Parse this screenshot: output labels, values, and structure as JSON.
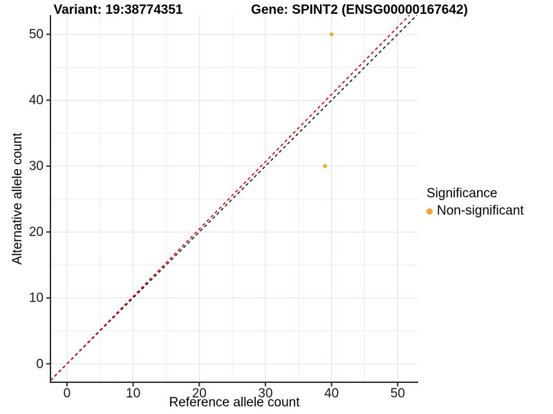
{
  "titles": {
    "variant": "Variant: 19:38774351",
    "gene": "Gene: SPINT2 (ENSG00000167642)"
  },
  "axes": {
    "x_label": "Reference allele count",
    "y_label": "Alternative allele count"
  },
  "legend": {
    "title": "Significance",
    "items": [
      {
        "label": "Non-significant",
        "color": "#FBA226",
        "marker": "circle-icon"
      }
    ]
  },
  "chart_data": {
    "type": "scatter",
    "title_left": "Variant: 19:38774351",
    "title_right": "Gene: SPINT2 (ENSG00000167642)",
    "xlabel": "Reference allele count",
    "ylabel": "Alternative allele count",
    "xlim": [
      -2.5,
      53.1
    ],
    "ylim": [
      -2.8,
      52.9
    ],
    "x_ticks": [
      0,
      10,
      20,
      30,
      40,
      50
    ],
    "y_ticks": [
      0,
      10,
      20,
      30,
      40,
      50
    ],
    "x_minor": [
      5,
      15,
      25,
      35,
      45
    ],
    "y_minor": [
      5,
      15,
      25,
      35,
      45
    ],
    "grid": true,
    "legend_position": "right",
    "series": [
      {
        "name": "Non-significant",
        "color": "#FBA226"
      }
    ],
    "points": [
      {
        "x": 40,
        "y": 50,
        "series": "Non-significant"
      },
      {
        "x": 39,
        "y": 30,
        "series": "Non-significant"
      }
    ],
    "lines": [
      {
        "name": "identity-line",
        "slope": 1.0,
        "intercept": 0,
        "color": "#1F1F1F",
        "style": "dashed"
      },
      {
        "name": "fit-line",
        "slope": 1.022,
        "intercept": 0,
        "color": "#E30202",
        "style": "dashed"
      }
    ]
  },
  "style": {
    "background": "#FFFFFF",
    "grid_major": "#E2E2E2",
    "grid_minor": "#EDEDED",
    "axis_line": "#2F2F2F",
    "tick_label_color": "#1A1A1A",
    "point_radius": 2.8,
    "tick_font_size": 19
  }
}
